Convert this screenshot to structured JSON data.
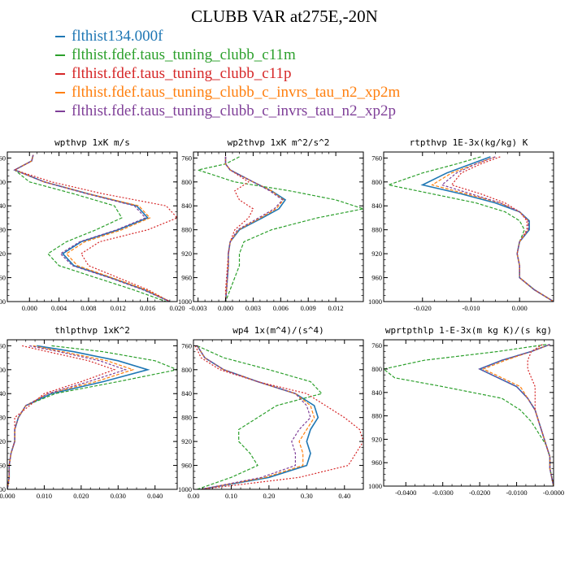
{
  "figure": {
    "title": "CLUBB VAR at275E,-20N",
    "legend": [
      {
        "label": "flthist134.000f",
        "color": "#1f77b4"
      },
      {
        "label": "flthist.fdef.taus_tuning_clubb_c11m",
        "color": "#2ca02c"
      },
      {
        "label": "flthist.fdef.taus_tuning_clubb_c11p",
        "color": "#d62728"
      },
      {
        "label": "flthist.fdef.taus_tuning_clubb_c_invrs_tau_n2_xp2m",
        "color": "#ff7f0e"
      },
      {
        "label": "flthist.fdef.taus_tuning_clubb_c_invrs_tau_n2_xp2p",
        "color": "#7f3f98"
      }
    ]
  },
  "chart_data": [
    {
      "type": "line",
      "title": "wpthvp  1xK m/s",
      "xlim": [
        -0.003,
        0.02
      ],
      "ylim": [
        1000,
        750
      ],
      "xticks": [
        0.0,
        0.004,
        0.008,
        0.012,
        0.016,
        0.02
      ],
      "xtick_labels": [
        "0.000",
        "0.004",
        "0.008",
        "0.012",
        "0.016",
        "0.020"
      ],
      "yticks": [
        760,
        800,
        840,
        880,
        920,
        960,
        1000
      ],
      "y": [
        755,
        765,
        780,
        800,
        820,
        840,
        860,
        880,
        900,
        920,
        940,
        960,
        980,
        1000
      ],
      "series": [
        {
          "values": [
            0.0005,
            0.0003,
            -0.002,
            0.002,
            0.008,
            0.0145,
            0.016,
            0.012,
            0.007,
            0.0045,
            0.006,
            0.011,
            0.0155,
            0.019
          ]
        },
        {
          "values": [
            0.0005,
            0.0003,
            -0.002,
            0.0,
            0.006,
            0.0115,
            0.0125,
            0.009,
            0.005,
            0.0025,
            0.004,
            0.009,
            0.014,
            0.0185
          ]
        },
        {
          "values": [
            0.0005,
            0.0003,
            -0.002,
            0.003,
            0.01,
            0.0185,
            0.02,
            0.016,
            0.0095,
            0.007,
            0.008,
            0.012,
            0.016,
            0.019
          ]
        },
        {
          "values": [
            0.0005,
            0.0003,
            -0.002,
            0.002,
            0.008,
            0.0148,
            0.0163,
            0.0125,
            0.0075,
            0.005,
            0.0065,
            0.0112,
            0.0157,
            0.019
          ]
        },
        {
          "values": [
            0.0005,
            0.0003,
            -0.002,
            0.002,
            0.0078,
            0.0142,
            0.0157,
            0.0118,
            0.0068,
            0.0042,
            0.0058,
            0.0108,
            0.0153,
            0.019
          ]
        }
      ]
    },
    {
      "type": "line",
      "title": "wp2thvp  1xK m^2/s^2",
      "xlim": [
        -0.0035,
        0.015
      ],
      "ylim": [
        1000,
        750
      ],
      "xticks": [
        -0.003,
        0.0,
        0.003,
        0.006,
        0.009,
        0.012
      ],
      "xtick_labels": [
        "-0.003",
        "0.000",
        "0.003",
        "0.006",
        "0.009",
        "0.012"
      ],
      "yticks": [
        760,
        800,
        840,
        880,
        920,
        960,
        1000
      ],
      "y": [
        758,
        770,
        780,
        800,
        815,
        830,
        845,
        860,
        880,
        900,
        920,
        940,
        960,
        980,
        1000
      ],
      "series": [
        {
          "values": [
            0.0,
            0.0,
            0.0005,
            0.003,
            0.005,
            0.0065,
            0.0058,
            0.004,
            0.0015,
            0.0005,
            0.0003,
            0.0003,
            0.0002,
            0.0001,
            0.0
          ]
        },
        {
          "values": [
            0.0015,
            0.0,
            -0.003,
            0.001,
            0.007,
            0.012,
            0.015,
            0.01,
            0.005,
            0.002,
            0.0015,
            0.0015,
            0.001,
            0.0005,
            0.0
          ]
        },
        {
          "values": [
            0.0,
            0.0,
            0.0005,
            0.0025,
            0.001,
            0.0015,
            0.003,
            0.0025,
            0.001,
            0.0005,
            0.0003,
            0.0002,
            0.0001,
            0.0,
            0.0
          ]
        },
        {
          "values": [
            0.0,
            0.0,
            0.0005,
            0.003,
            0.005,
            0.0063,
            0.0055,
            0.0038,
            0.0014,
            0.0005,
            0.0003,
            0.0003,
            0.0002,
            0.0001,
            0.0
          ]
        },
        {
          "values": [
            0.0,
            0.0,
            0.0005,
            0.003,
            0.0048,
            0.0062,
            0.0053,
            0.0036,
            0.0013,
            0.0005,
            0.0003,
            0.0003,
            0.0002,
            0.0001,
            0.0
          ]
        }
      ]
    },
    {
      "type": "line",
      "title": "rtpthvp  1E-3x(kg/kg) K",
      "xlim": [
        -0.028,
        0.007
      ],
      "ylim": [
        1000,
        750
      ],
      "xticks": [
        -0.02,
        -0.01,
        0.0
      ],
      "xtick_labels": [
        "-0.020",
        "-0.010",
        "0.000"
      ],
      "yticks": [
        760,
        800,
        840,
        880,
        920,
        960,
        1000
      ],
      "y": [
        758,
        770,
        785,
        805,
        820,
        835,
        850,
        865,
        880,
        900,
        920,
        940,
        960,
        980,
        1000
      ],
      "series": [
        {
          "values": [
            -0.006,
            -0.01,
            -0.015,
            -0.02,
            -0.012,
            -0.005,
            0.0,
            0.002,
            0.002,
            0.0,
            -0.0005,
            0.0,
            0.0,
            0.003,
            0.007
          ]
        },
        {
          "values": [
            -0.008,
            -0.013,
            -0.02,
            -0.027,
            -0.018,
            -0.009,
            -0.003,
            0.0,
            0.001,
            0.0,
            -0.0005,
            0.0,
            0.0,
            0.003,
            0.007
          ]
        },
        {
          "values": [
            -0.004,
            -0.008,
            -0.012,
            -0.014,
            -0.008,
            -0.003,
            0.0,
            0.0015,
            0.0015,
            0.0,
            -0.0005,
            0.0,
            0.0,
            0.003,
            0.007
          ]
        },
        {
          "values": [
            -0.005,
            -0.009,
            -0.014,
            -0.018,
            -0.011,
            -0.004,
            0.0,
            0.0018,
            0.0018,
            0.0,
            -0.0005,
            0.0,
            0.0,
            0.003,
            0.007
          ]
        },
        {
          "values": [
            -0.005,
            -0.009,
            -0.013,
            -0.016,
            -0.01,
            -0.004,
            0.0,
            0.0018,
            0.0018,
            0.0,
            -0.0005,
            0.0,
            0.0,
            0.003,
            0.007
          ]
        }
      ]
    },
    {
      "type": "line",
      "title": "thlpthvp  1xK^2",
      "xlim": [
        0.0,
        0.046
      ],
      "ylim": [
        1000,
        750
      ],
      "xticks": [
        0.0,
        0.01,
        0.02,
        0.03,
        0.04
      ],
      "xtick_labels": [
        "0.000",
        "0.010",
        "0.020",
        "0.030",
        "0.040"
      ],
      "yticks": [
        760,
        800,
        840,
        880,
        920,
        960,
        1000
      ],
      "y": [
        760,
        770,
        785,
        800,
        820,
        840,
        860,
        880,
        900,
        920,
        940,
        960,
        980,
        1000
      ],
      "series": [
        {
          "values": [
            0.008,
            0.018,
            0.03,
            0.038,
            0.026,
            0.012,
            0.005,
            0.003,
            0.002,
            0.002,
            0.001,
            0.0005,
            0.0005,
            0.0
          ]
        },
        {
          "values": [
            0.012,
            0.026,
            0.04,
            0.046,
            0.03,
            0.013,
            0.005,
            0.003,
            0.002,
            0.002,
            0.001,
            0.0005,
            0.0005,
            0.0
          ]
        },
        {
          "values": [
            0.004,
            0.011,
            0.022,
            0.029,
            0.02,
            0.01,
            0.006,
            0.002,
            0.002,
            0.002,
            0.001,
            0.0005,
            0.0005,
            0.0
          ]
        },
        {
          "values": [
            0.007,
            0.015,
            0.027,
            0.034,
            0.024,
            0.011,
            0.005,
            0.003,
            0.002,
            0.002,
            0.001,
            0.0005,
            0.0005,
            0.0
          ]
        },
        {
          "values": [
            0.006,
            0.014,
            0.025,
            0.032,
            0.022,
            0.011,
            0.005,
            0.003,
            0.002,
            0.002,
            0.001,
            0.0005,
            0.0005,
            0.0
          ]
        }
      ]
    },
    {
      "type": "line",
      "title": "wp4  1x(m^4)/(s^4)",
      "xlim": [
        0.0,
        0.45
      ],
      "ylim": [
        1000,
        750
      ],
      "xticks": [
        0.0,
        0.1,
        0.2,
        0.3,
        0.4
      ],
      "xtick_labels": [
        "0.00",
        "0.10",
        "0.20",
        "0.30",
        "0.40"
      ],
      "yticks": [
        760,
        800,
        840,
        880,
        920,
        960,
        1000
      ],
      "y": [
        760,
        780,
        800,
        820,
        840,
        860,
        880,
        900,
        920,
        940,
        960,
        980,
        1000
      ],
      "series": [
        {
          "values": [
            0.01,
            0.03,
            0.08,
            0.17,
            0.27,
            0.32,
            0.33,
            0.31,
            0.3,
            0.31,
            0.3,
            0.2,
            0.02
          ]
        },
        {
          "values": [
            0.01,
            0.08,
            0.2,
            0.31,
            0.34,
            0.22,
            0.17,
            0.12,
            0.12,
            0.15,
            0.17,
            0.1,
            0.01
          ]
        },
        {
          "values": [
            0.005,
            0.02,
            0.07,
            0.17,
            0.3,
            0.35,
            0.4,
            0.44,
            0.45,
            0.43,
            0.41,
            0.28,
            0.02
          ]
        },
        {
          "values": [
            0.01,
            0.03,
            0.08,
            0.17,
            0.27,
            0.31,
            0.32,
            0.3,
            0.28,
            0.29,
            0.29,
            0.19,
            0.02
          ]
        },
        {
          "values": [
            0.01,
            0.03,
            0.08,
            0.17,
            0.27,
            0.3,
            0.31,
            0.28,
            0.26,
            0.27,
            0.27,
            0.18,
            0.02
          ]
        }
      ]
    },
    {
      "type": "line",
      "title": "wprtpthlp  1-E-3x(m kg K)/(s kg)",
      "xlim": [
        -0.046,
        0.0
      ],
      "ylim": [
        1000,
        750
      ],
      "xticks": [
        -0.04,
        -0.03,
        -0.02,
        -0.01,
        0.0
      ],
      "xtick_labels": [
        "-0.0400",
        "-0.0300",
        "-0.0200",
        "-0.0100",
        "-0.0000"
      ],
      "yticks": [
        760,
        800,
        840,
        880,
        920,
        960,
        1000
      ],
      "y": [
        758,
        770,
        785,
        800,
        815,
        830,
        850,
        870,
        890,
        910,
        930,
        950,
        970,
        985,
        1000
      ],
      "series": [
        {
          "values": [
            -0.001,
            -0.006,
            -0.014,
            -0.02,
            -0.015,
            -0.01,
            -0.007,
            -0.005,
            -0.004,
            -0.003,
            -0.002,
            -0.001,
            -0.001,
            -0.0005,
            0.0
          ]
        },
        {
          "values": [
            -0.002,
            -0.015,
            -0.035,
            -0.046,
            -0.043,
            -0.03,
            -0.014,
            -0.009,
            -0.006,
            -0.004,
            -0.002,
            -0.001,
            -0.001,
            -0.0005,
            0.0
          ]
        },
        {
          "values": [
            -0.003,
            -0.006,
            -0.007,
            -0.007,
            -0.006,
            -0.005,
            -0.005,
            -0.005,
            -0.004,
            -0.003,
            -0.002,
            -0.001,
            -0.001,
            -0.0005,
            0.0
          ]
        },
        {
          "values": [
            -0.001,
            -0.006,
            -0.013,
            -0.019,
            -0.014,
            -0.009,
            -0.007,
            -0.005,
            -0.004,
            -0.003,
            -0.002,
            -0.001,
            -0.001,
            -0.0005,
            0.0
          ]
        },
        {
          "values": [
            -0.001,
            -0.006,
            -0.014,
            -0.02,
            -0.015,
            -0.01,
            -0.007,
            -0.005,
            -0.004,
            -0.003,
            -0.002,
            -0.001,
            -0.001,
            -0.0005,
            0.0
          ]
        }
      ]
    }
  ]
}
